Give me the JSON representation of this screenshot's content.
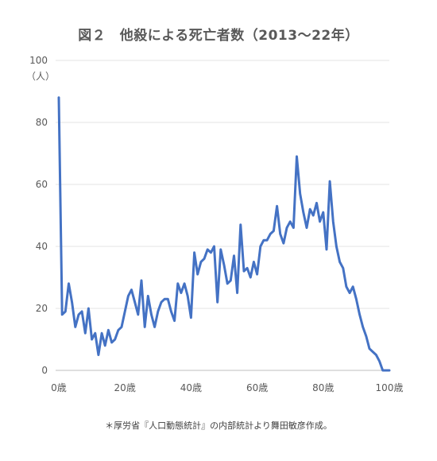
{
  "chart_data": {
    "type": "line",
    "title": "図２　他殺による死亡者数（2013〜22年）",
    "ylabel": "（人）",
    "xlabel": "",
    "ylim": [
      0,
      100
    ],
    "xlim": [
      0,
      100
    ],
    "y_ticks": [
      0,
      20,
      40,
      60,
      80,
      100
    ],
    "x_ticks": [
      {
        "value": 0,
        "label": "0歳"
      },
      {
        "value": 20,
        "label": "20歳"
      },
      {
        "value": 40,
        "label": "40歳"
      },
      {
        "value": 60,
        "label": "60歳"
      },
      {
        "value": 80,
        "label": "80歳"
      },
      {
        "value": 100,
        "label": "100歳"
      }
    ],
    "grid": true,
    "legend": "none",
    "line_color": "#4472C4",
    "x": [
      0,
      1,
      2,
      3,
      4,
      5,
      6,
      7,
      8,
      9,
      10,
      11,
      12,
      13,
      14,
      15,
      16,
      17,
      18,
      19,
      20,
      21,
      22,
      23,
      24,
      25,
      26,
      27,
      28,
      29,
      30,
      31,
      32,
      33,
      34,
      35,
      36,
      37,
      38,
      39,
      40,
      41,
      42,
      43,
      44,
      45,
      46,
      47,
      48,
      49,
      50,
      51,
      52,
      53,
      54,
      55,
      56,
      57,
      58,
      59,
      60,
      61,
      62,
      63,
      64,
      65,
      66,
      67,
      68,
      69,
      70,
      71,
      72,
      73,
      74,
      75,
      76,
      77,
      78,
      79,
      80,
      81,
      82,
      83,
      84,
      85,
      86,
      87,
      88,
      89,
      90,
      91,
      92,
      93,
      94,
      95,
      96,
      97,
      98,
      99,
      100
    ],
    "series": [
      {
        "values": [
          88,
          18,
          19,
          28,
          22,
          14,
          18,
          19,
          12,
          20,
          10,
          12,
          5,
          12,
          8,
          13,
          9,
          10,
          13,
          14,
          19,
          24,
          26,
          22,
          18,
          29,
          14,
          24,
          18,
          14,
          19,
          22,
          23,
          23,
          19,
          16,
          28,
          25,
          28,
          24,
          17,
          38,
          31,
          35,
          36,
          39,
          38,
          40,
          22,
          39,
          34,
          28,
          29,
          37,
          25,
          47,
          32,
          33,
          30,
          35,
          31,
          40,
          42,
          42,
          44,
          45,
          53,
          44,
          41,
          46,
          48,
          46,
          69,
          57,
          51,
          46,
          52,
          50,
          54,
          48,
          51,
          39,
          61,
          48,
          40,
          35,
          33,
          27,
          25,
          27,
          23,
          18,
          14,
          11,
          7,
          6,
          5,
          3,
          0,
          0,
          0
        ]
      }
    ]
  },
  "footnote": "＊厚労省『人口動態統計』の内部統計より舞田敏彦作成。"
}
